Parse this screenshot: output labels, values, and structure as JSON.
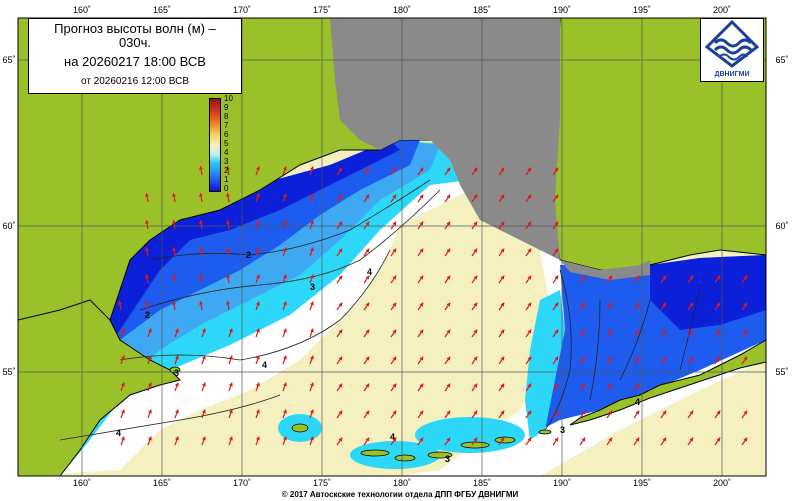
{
  "title": {
    "line1": "Прогноз высоты волн (м) –",
    "line2": "030ч.",
    "line3": "на 20260217 18:00 ВСВ",
    "line4": "от 20260216 12:00 ВСВ"
  },
  "logo": {
    "caption": "ДВНИГМИ",
    "icon": "dvnigmi-wave-logo"
  },
  "longitude_labels": [
    "160˚",
    "165˚",
    "170˚",
    "175˚",
    "180˚",
    "185˚",
    "190˚",
    "195˚",
    "200˚"
  ],
  "latitude_labels": [
    "65˚",
    "60˚",
    "55˚"
  ],
  "legend": {
    "ticks": [
      "10",
      "9",
      "8",
      "7",
      "6",
      "5",
      "4",
      "3",
      "2",
      "1",
      "0"
    ],
    "colors": [
      "#8c1818",
      "#c82828",
      "#e85a1a",
      "#f09a30",
      "#f2d66a",
      "#f4f0c0",
      "#bff1f5",
      "#26c4f8",
      "#2a8ef5",
      "#1e4ef0",
      "#0b17c8"
    ]
  },
  "contour_labels": [
    "2",
    "3",
    "4",
    "2",
    "3",
    "4",
    "4",
    "3",
    "4",
    "3",
    "4"
  ],
  "colors": {
    "land": "#9bc12a",
    "sea_ice": "#8a8a8a",
    "deep_blue": "#0b20d8",
    "blue": "#1e5cf0",
    "light_blue": "#3fb6f3",
    "cyan": "#2dd7f7",
    "pale": "#f4f0c0",
    "white_zone": "#ffffff",
    "arrow": "#e01818",
    "grid": "#555555"
  },
  "footer": "© 2017 Автоскские технологии отдела ДПП ФГБУ ДВНИГМИ"
}
